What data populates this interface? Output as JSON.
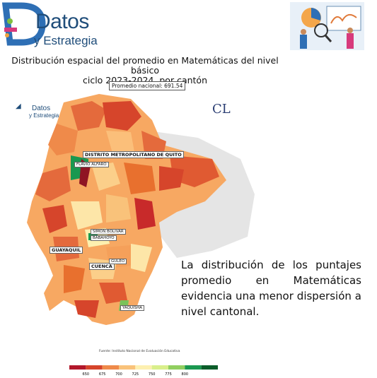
{
  "brand": {
    "name": "Datos",
    "sub": "y Estrategia"
  },
  "title": {
    "line1": "Distribución espacial del promedio en Matemáticas del nivel básico",
    "line2": "ciclo 2023-2024, por cantón"
  },
  "national_average": "Promedio nacional: 691.54",
  "watermark": "CL",
  "labels": {
    "quito": "DISTRITO METROPOLITANO DE QUITO",
    "flavio": "FLAVIO ALFARO",
    "simon": "SIMON BOLIVAR",
    "baba": "BABAHOYO",
    "guayaquil": "GUAYAQUIL",
    "cuenca": "CUENCA",
    "gualaceo": "GULEO",
    "yacuambi": "YAQUISHA"
  },
  "callout": "La distribución de los puntajes promedio en Matemáticas evidencia una menor dispersión a nivel cantonal.",
  "source": "Fuente: Instituto Nacional de Evaluación Educativa",
  "legend": {
    "ticks": [
      "650",
      "675",
      "700",
      "725",
      "750",
      "775",
      "800"
    ],
    "colors": [
      "#b2182b",
      "#d6452b",
      "#ef8a4a",
      "#f9c27a",
      "#fdf0b0",
      "#d9ef8b",
      "#91cf60",
      "#1a9850",
      "#0b5d2a"
    ]
  },
  "colors": {
    "brand": "#1f4d7a",
    "accent": "#d73a7c"
  }
}
